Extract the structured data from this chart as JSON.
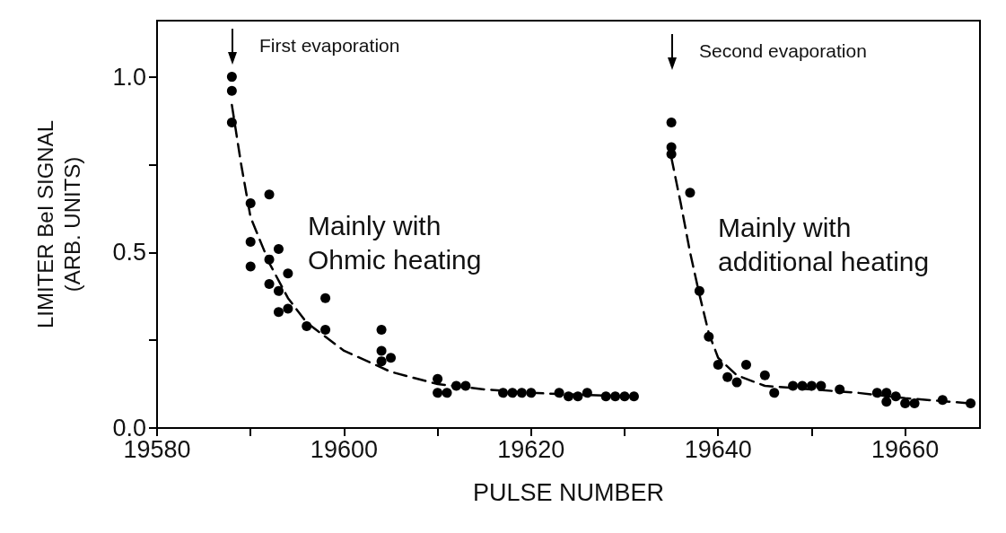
{
  "chart_data": {
    "type": "scatter",
    "xlabel": "PULSE NUMBER",
    "ylabel": "LIMITER BeI SIGNAL\n(ARB. UNITS)",
    "xlim": [
      19580,
      19668
    ],
    "ylim": [
      0,
      1.16
    ],
    "xticks": [
      19580,
      {
        "value": 19590,
        "label": null
      },
      19600,
      {
        "value": 19610,
        "label": null
      },
      19620,
      {
        "value": 19630,
        "label": null
      },
      19640,
      {
        "value": 19650,
        "label": null
      },
      19660
    ],
    "yticks": [
      {
        "value": 0,
        "label": "0.0"
      },
      {
        "value": 0.25,
        "label": null
      },
      {
        "value": 0.5,
        "label": "0.5"
      },
      {
        "value": 0.75,
        "label": null
      },
      {
        "value": 1,
        "label": "1.0"
      }
    ],
    "grid": false,
    "marker": "circle",
    "series": [
      {
        "color": "#000000",
        "x": [
          19588,
          19588,
          19588,
          19590,
          19592,
          19590,
          19590,
          19592,
          19593,
          19594,
          19592,
          19593,
          19593,
          19594,
          19596,
          19598,
          19598,
          19604,
          19604,
          19604,
          19605,
          19610,
          19610,
          19611,
          19612,
          19613,
          19617,
          19618,
          19619,
          19620,
          19623,
          19624,
          19625,
          19626,
          19628,
          19629,
          19630,
          19631,
          19635,
          19635,
          19635,
          19637,
          19638,
          19639,
          19640,
          19643,
          19641,
          19642,
          19645,
          19646,
          19648,
          19649,
          19650,
          19651,
          19653,
          19657,
          19658,
          19659,
          19658,
          19660,
          19661,
          19664,
          19667
        ],
        "values": [
          1.0,
          0.96,
          0.87,
          0.64,
          0.665,
          0.53,
          0.46,
          0.48,
          0.51,
          0.44,
          0.41,
          0.39,
          0.33,
          0.34,
          0.29,
          0.37,
          0.28,
          0.28,
          0.22,
          0.19,
          0.2,
          0.14,
          0.1,
          0.1,
          0.12,
          0.12,
          0.1,
          0.1,
          0.1,
          0.1,
          0.1,
          0.09,
          0.09,
          0.1,
          0.09,
          0.09,
          0.09,
          0.09,
          0.87,
          0.8,
          0.78,
          0.67,
          0.39,
          0.26,
          0.18,
          0.18,
          0.145,
          0.13,
          0.15,
          0.1,
          0.12,
          0.12,
          0.12,
          0.12,
          0.11,
          0.1,
          0.1,
          0.09,
          0.075,
          0.07,
          0.07,
          0.08,
          0.07
        ]
      },
      {
        "type": "line",
        "color": "#000000",
        "line_style": "dashed",
        "marker": "none",
        "x": [
          19588,
          19589,
          19590,
          19592,
          19594,
          19596,
          19600,
          19605,
          19610,
          19615,
          19620,
          19625,
          19631
        ],
        "values": [
          0.92,
          0.75,
          0.6,
          0.47,
          0.37,
          0.3,
          0.22,
          0.16,
          0.125,
          0.11,
          0.1,
          0.095,
          0.09
        ]
      },
      {
        "type": "line",
        "color": "#000000",
        "line_style": "dashed",
        "marker": "none",
        "x": [
          19635,
          19636,
          19637,
          19638,
          19639,
          19640,
          19642,
          19645,
          19650,
          19655,
          19660,
          19667
        ],
        "values": [
          0.77,
          0.64,
          0.5,
          0.38,
          0.27,
          0.2,
          0.15,
          0.12,
          0.11,
          0.1,
          0.085,
          0.07
        ]
      }
    ],
    "annotations": [
      "First evaporation",
      "Second evaporation",
      "Mainly with\nOhmic heating",
      "Mainly with\nadditional heating"
    ]
  }
}
